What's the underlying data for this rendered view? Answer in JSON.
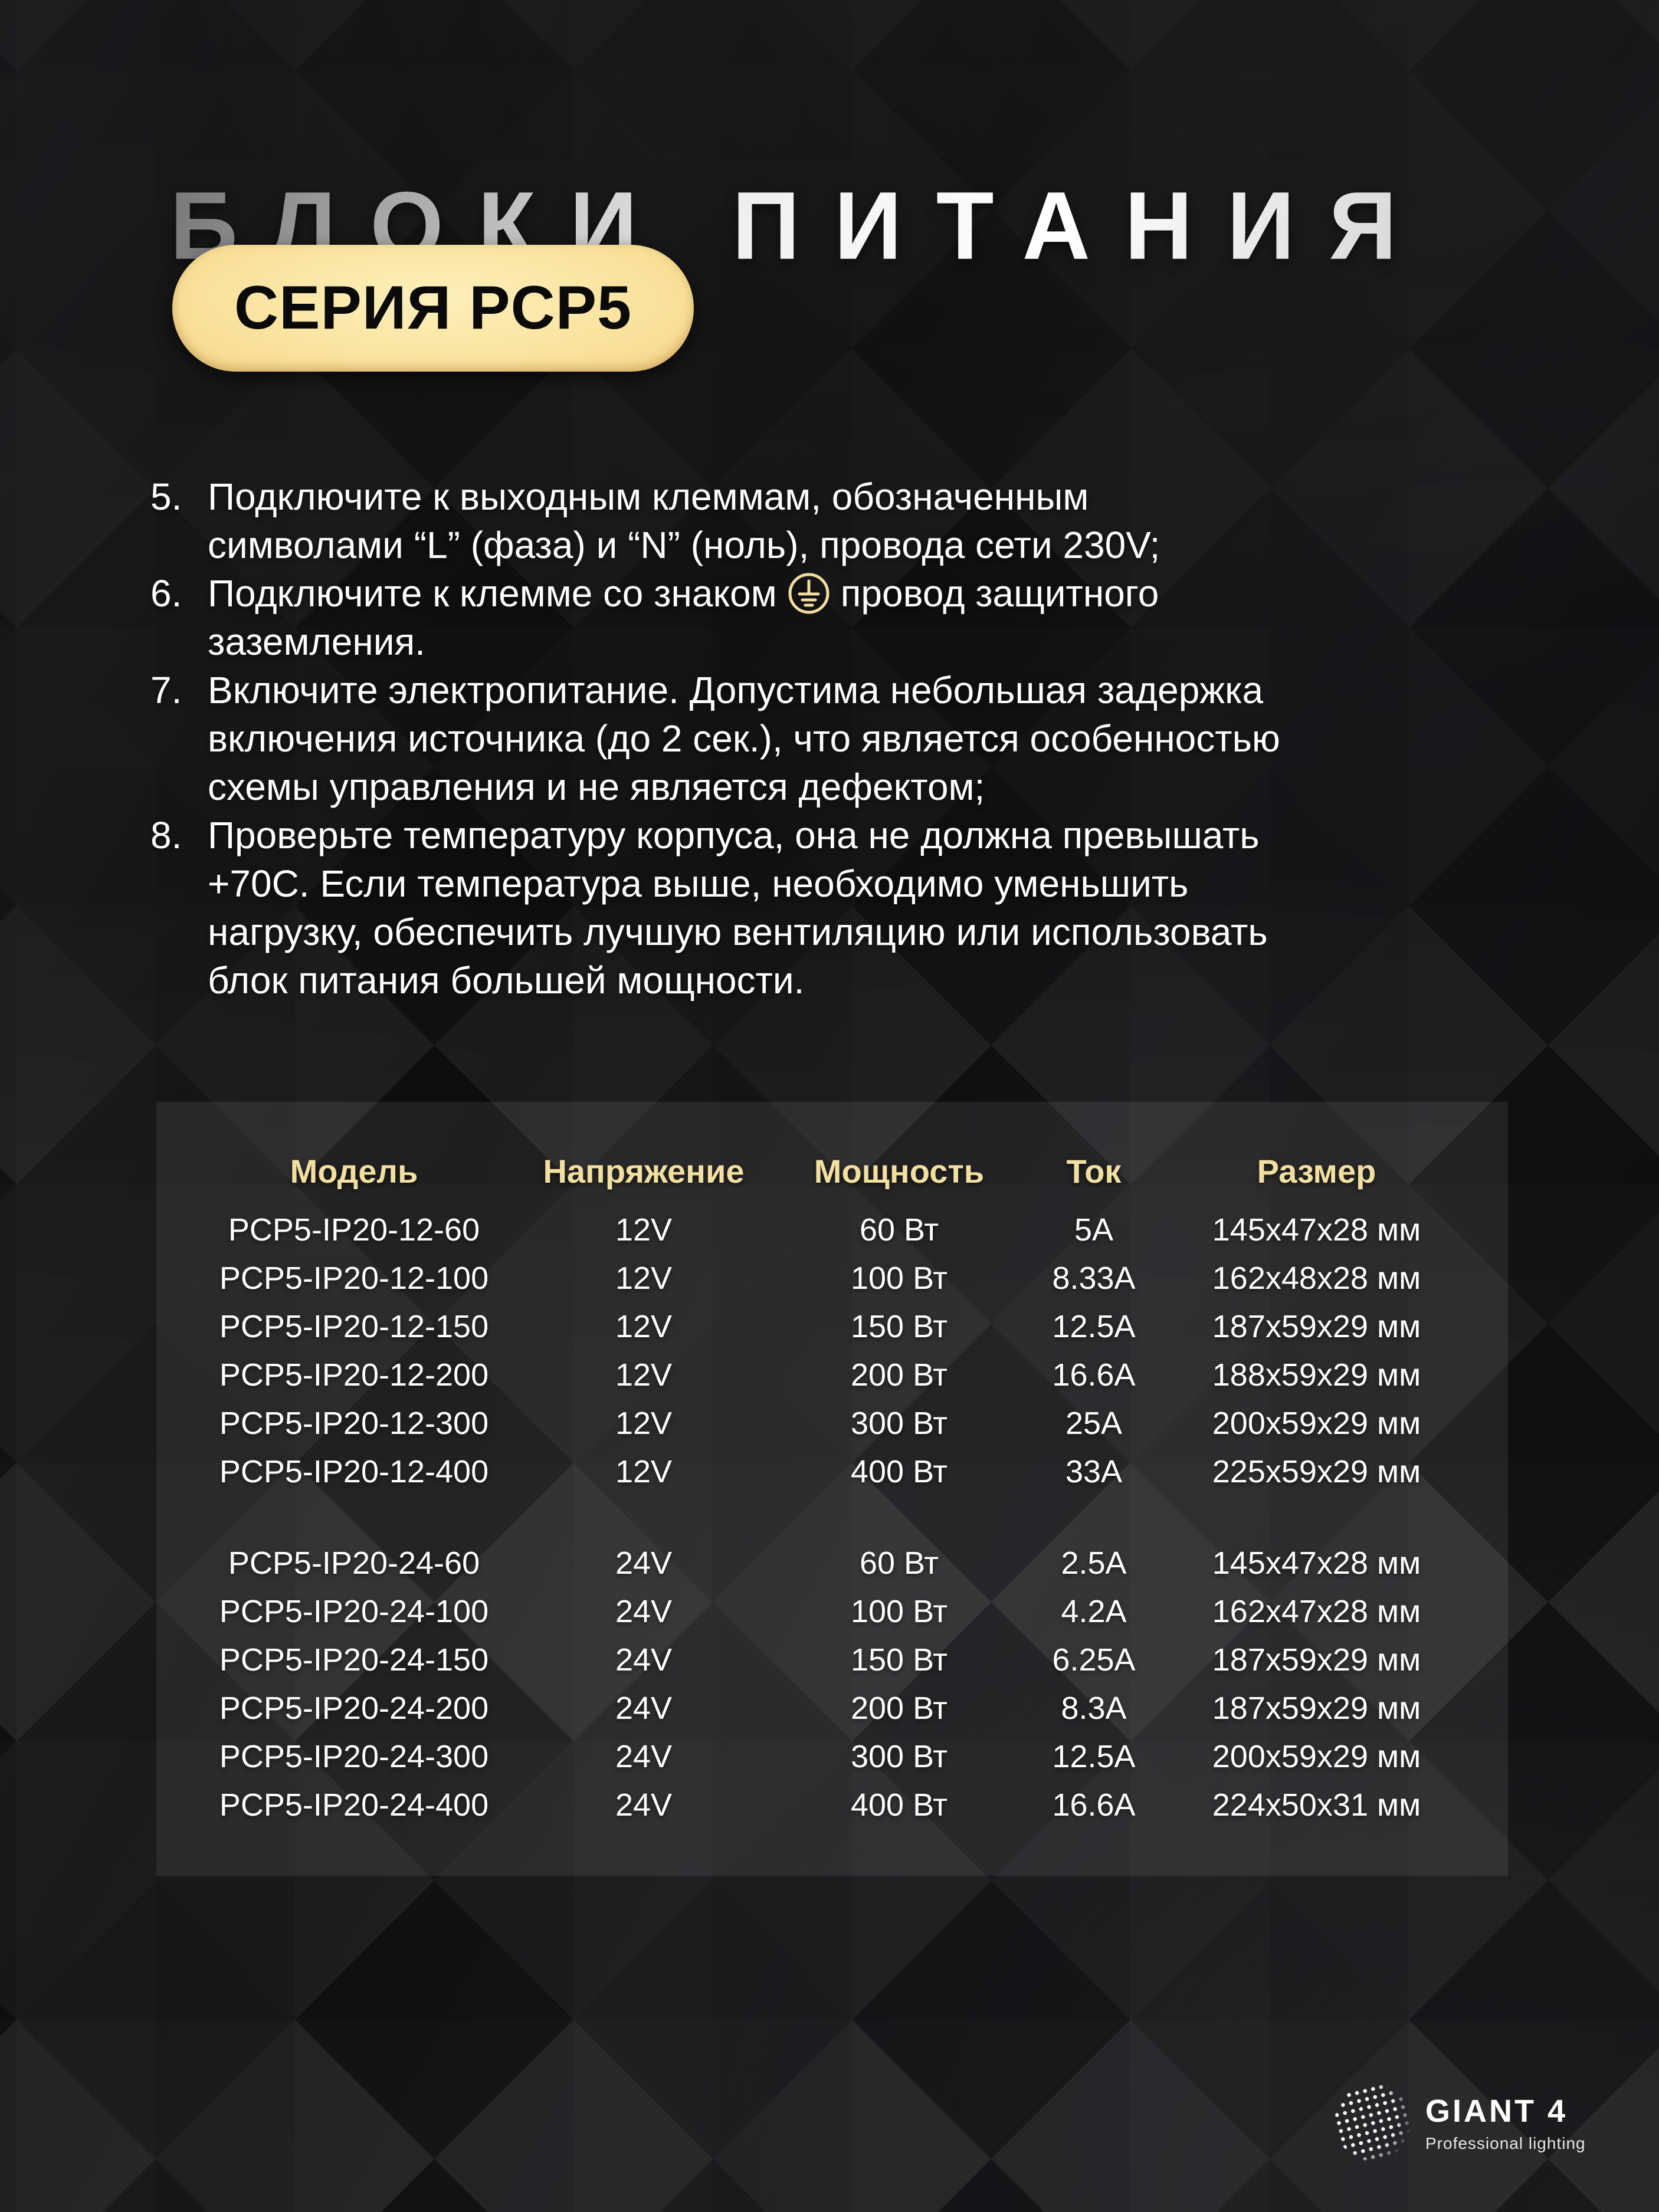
{
  "title": "БЛОКИ ПИТАНИЯ",
  "badge": "СЕРИЯ PCP5",
  "instructions": [
    {
      "number": "5.",
      "lines": [
        "Подключите к выходным клеммам, обозначенным",
        "символами “L” (фаза) и “N” (ноль), провода сети 230V;"
      ]
    },
    {
      "number": "6.",
      "line_pre": "Подключите к клемме со знаком",
      "line_post": "провод защитного",
      "line2": "заземления.",
      "icon": "ground-icon"
    },
    {
      "number": "7.",
      "lines": [
        "Включите электропитание. Допустима небольшая задержка",
        "включения источника (до 2 сек.), что является особенностью",
        "схемы управления и не является дефектом;"
      ]
    },
    {
      "number": "8.",
      "lines": [
        "Проверьте температуру корпуса, она не должна превышать",
        "+70C. Если температура выше, необходимо уменьшить",
        "нагрузку, обеспечить лучшую вентиляцию или использовать",
        "блок питания большей мощности."
      ]
    }
  ],
  "table": {
    "headers": [
      "Модель",
      "Напряжение",
      "Мощность",
      "Ток",
      "Размер"
    ],
    "groups": [
      {
        "rows": [
          [
            "PCP5-IP20-12-60",
            "12V",
            "60 Вт",
            "5A",
            "145x47x28 мм"
          ],
          [
            "PCP5-IP20-12-100",
            "12V",
            "100 Вт",
            "8.33A",
            "162x48x28 мм"
          ],
          [
            "PCP5-IP20-12-150",
            "12V",
            "150 Вт",
            "12.5A",
            "187x59x29 мм"
          ],
          [
            "PCP5-IP20-12-200",
            "12V",
            "200 Вт",
            "16.6A",
            "188x59x29 мм"
          ],
          [
            "PCP5-IP20-12-300",
            "12V",
            "300 Вт",
            "25A",
            "200x59x29 мм"
          ],
          [
            "PCP5-IP20-12-400",
            "12V",
            "400 Вт",
            "33A",
            "225x59x29 мм"
          ]
        ]
      },
      {
        "rows": [
          [
            "PCP5-IP20-24-60",
            "24V",
            "60 Вт",
            "2.5A",
            "145x47x28 мм"
          ],
          [
            "PCP5-IP20-24-100",
            "24V",
            "100 Вт",
            "4.2A",
            "162x47x28 мм"
          ],
          [
            "PCP5-IP20-24-150",
            "24V",
            "150 Вт",
            "6.25A",
            "187x59x29 мм"
          ],
          [
            "PCP5-IP20-24-200",
            "24V",
            "200 Вт",
            "8.3A",
            "187x59x29 мм"
          ],
          [
            "PCP5-IP20-24-300",
            "24V",
            "300 Вт",
            "12.5A",
            "200x59x29 мм"
          ],
          [
            "PCP5-IP20-24-400",
            "24V",
            "400 Вт",
            "16.6A",
            "224x50x31 мм"
          ]
        ]
      }
    ]
  },
  "logo": {
    "name": "GIANT 4",
    "tagline": "Professional lighting"
  },
  "colors": {
    "gold_text": "#f3dfa0",
    "badge_gold_light": "#fdf0bb",
    "badge_gold_dark": "#db9c52",
    "title_silver_dark": "#787878",
    "title_silver_light": "#ffffff",
    "panel_overlay": "rgba(255,255,255,0.08)",
    "background": "#0c0c0e",
    "body_text": "#ffffff"
  }
}
